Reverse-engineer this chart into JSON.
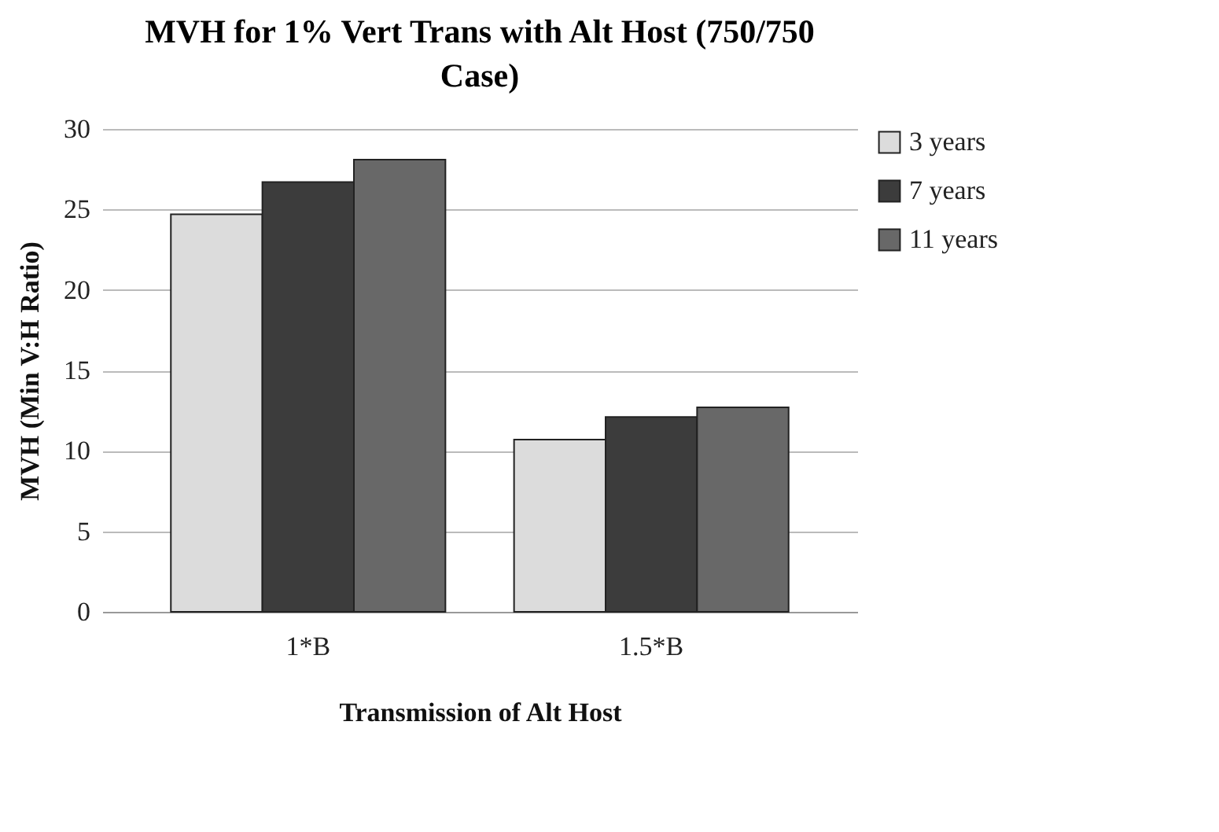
{
  "chart_data": {
    "type": "bar",
    "title": "MVH for 1% Vert Trans with Alt Host (750/750 Case)",
    "xlabel": "Transmission of Alt Host",
    "ylabel": "MVH (Min V:H Ratio)",
    "categories": [
      "1*B",
      "1.5*B"
    ],
    "series": [
      {
        "name": "3 years",
        "color": "#dcdcdc",
        "values": [
          24.7,
          10.7
        ]
      },
      {
        "name": "7 years",
        "color": "#3c3c3c",
        "values": [
          26.7,
          12.1
        ]
      },
      {
        "name": "11 years",
        "color": "#686868",
        "values": [
          28.1,
          12.7
        ]
      }
    ],
    "ylim": [
      0,
      30
    ],
    "yticks": [
      0,
      5,
      10,
      15,
      20,
      25,
      30
    ],
    "grid": "y",
    "legend": "right"
  }
}
